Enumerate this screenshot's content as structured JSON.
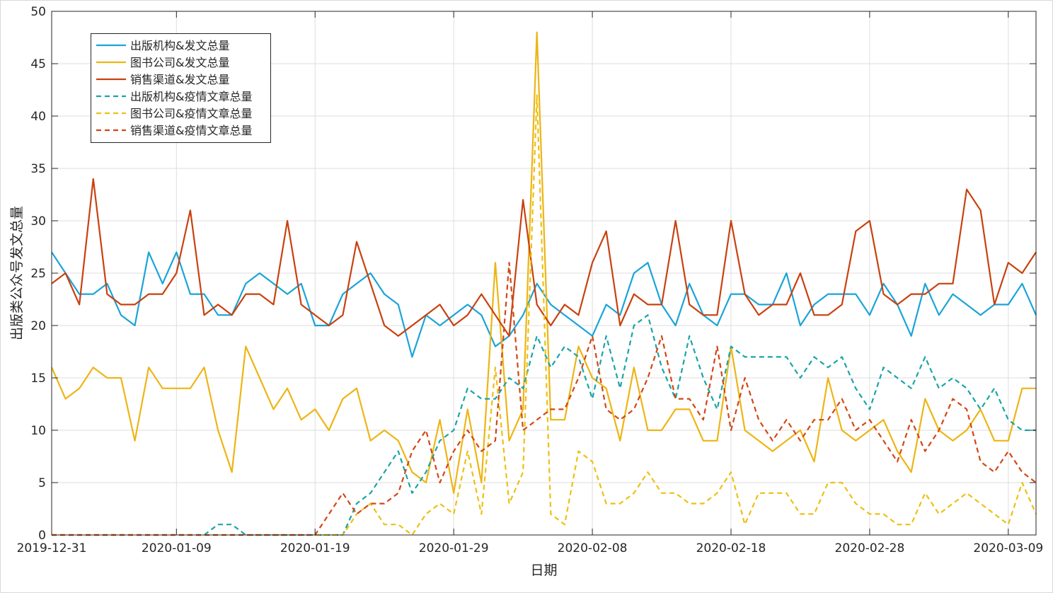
{
  "chart_data": {
    "type": "line",
    "xlabel": "日期",
    "ylabel": "出版类公众号发文总量",
    "ylim": [
      0,
      50
    ],
    "yticks": [
      0,
      5,
      10,
      15,
      20,
      25,
      30,
      35,
      40,
      45,
      50
    ],
    "xlim": [
      "2019-12-31",
      "2020-03-11"
    ],
    "xtick_labels": [
      "2019-12-31",
      "2020-01-09",
      "2020-01-19",
      "2020-01-29",
      "2020-02-08",
      "2020-02-18",
      "2020-02-28",
      "2020-03-09"
    ],
    "grid": true,
    "legend_position": "top-left",
    "dates": [
      "2019-12-31",
      "2020-01-01",
      "2020-01-02",
      "2020-01-03",
      "2020-01-04",
      "2020-01-05",
      "2020-01-06",
      "2020-01-07",
      "2020-01-08",
      "2020-01-09",
      "2020-01-10",
      "2020-01-11",
      "2020-01-12",
      "2020-01-13",
      "2020-01-14",
      "2020-01-15",
      "2020-01-16",
      "2020-01-17",
      "2020-01-18",
      "2020-01-19",
      "2020-01-20",
      "2020-01-21",
      "2020-01-22",
      "2020-01-23",
      "2020-01-24",
      "2020-01-25",
      "2020-01-26",
      "2020-01-27",
      "2020-01-28",
      "2020-01-29",
      "2020-01-30",
      "2020-01-31",
      "2020-02-01",
      "2020-02-02",
      "2020-02-03",
      "2020-02-04",
      "2020-02-05",
      "2020-02-06",
      "2020-02-07",
      "2020-02-08",
      "2020-02-09",
      "2020-02-10",
      "2020-02-11",
      "2020-02-12",
      "2020-02-13",
      "2020-02-14",
      "2020-02-15",
      "2020-02-16",
      "2020-02-17",
      "2020-02-18",
      "2020-02-19",
      "2020-02-20",
      "2020-02-21",
      "2020-02-22",
      "2020-02-23",
      "2020-02-24",
      "2020-02-25",
      "2020-02-26",
      "2020-02-27",
      "2020-02-28",
      "2020-02-29",
      "2020-03-01",
      "2020-03-02",
      "2020-03-03",
      "2020-03-04",
      "2020-03-05",
      "2020-03-06",
      "2020-03-07",
      "2020-03-08",
      "2020-03-09",
      "2020-03-10",
      "2020-03-11"
    ],
    "series": [
      {
        "name": "出版机构&发文总量",
        "color": "#1AA4D8",
        "style": "solid",
        "values": [
          27,
          25,
          23,
          23,
          24,
          21,
          20,
          27,
          24,
          27,
          23,
          23,
          21,
          21,
          24,
          25,
          24,
          23,
          24,
          20,
          20,
          23,
          24,
          25,
          23,
          22,
          17,
          21,
          20,
          21,
          22,
          21,
          18,
          19,
          21,
          24,
          22,
          21,
          20,
          19,
          22,
          21,
          25,
          26,
          22,
          20,
          24,
          21,
          20,
          23,
          23,
          22,
          22,
          25,
          20,
          22,
          23,
          23,
          23,
          21,
          24,
          22,
          19,
          24,
          21,
          23,
          22,
          21,
          22,
          22,
          24,
          21
        ]
      },
      {
        "name": "图书公司&发文总量",
        "color": "#EDB514",
        "style": "solid",
        "values": [
          16,
          13,
          14,
          16,
          15,
          15,
          9,
          16,
          14,
          14,
          14,
          16,
          10,
          6,
          18,
          15,
          12,
          14,
          11,
          12,
          10,
          13,
          14,
          9,
          10,
          9,
          6,
          5,
          11,
          4,
          12,
          5,
          26,
          9,
          12,
          48,
          11,
          11,
          18,
          15,
          14,
          9,
          16,
          10,
          10,
          12,
          12,
          9,
          9,
          18,
          10,
          9,
          8,
          9,
          10,
          7,
          15,
          10,
          9,
          10,
          11,
          8,
          6,
          13,
          10,
          9,
          10,
          12,
          9,
          9,
          14,
          14
        ]
      },
      {
        "name": "销售渠道&发文总量",
        "color": "#C8410F",
        "style": "solid",
        "values": [
          24,
          25,
          22,
          34,
          23,
          22,
          22,
          23,
          23,
          25,
          31,
          21,
          22,
          21,
          23,
          23,
          22,
          30,
          22,
          21,
          20,
          21,
          28,
          24,
          20,
          19,
          20,
          21,
          22,
          20,
          21,
          23,
          21,
          19,
          32,
          22,
          20,
          22,
          21,
          26,
          29,
          20,
          23,
          22,
          22,
          30,
          22,
          21,
          21,
          30,
          23,
          21,
          22,
          22,
          25,
          21,
          21,
          22,
          29,
          30,
          23,
          22,
          23,
          23,
          24,
          24,
          33,
          31,
          22,
          26,
          25,
          27
        ]
      },
      {
        "name": "出版机构&疫情文章总量",
        "color": "#1AA4A8",
        "style": "dashed",
        "values": [
          0,
          0,
          0,
          0,
          0,
          0,
          0,
          0,
          0,
          0,
          0,
          0,
          1,
          1,
          0,
          0,
          0,
          0,
          0,
          0,
          0,
          0,
          3,
          4,
          6,
          8,
          4,
          6,
          9,
          10,
          14,
          13,
          13,
          15,
          14,
          19,
          16,
          18,
          17,
          13,
          19,
          14,
          20,
          21,
          16,
          13,
          19,
          15,
          12,
          18,
          17,
          17,
          17,
          17,
          15,
          17,
          16,
          17,
          14,
          12,
          16,
          15,
          14,
          17,
          14,
          15,
          14,
          12,
          14,
          11,
          10,
          10
        ]
      },
      {
        "name": "图书公司&疫情文章总量",
        "color": "#EDC014",
        "style": "dashed",
        "values": [
          0,
          0,
          0,
          0,
          0,
          0,
          0,
          0,
          0,
          0,
          0,
          0,
          0,
          0,
          0,
          0,
          0,
          0,
          0,
          0,
          0,
          0,
          2,
          3,
          1,
          1,
          0,
          2,
          3,
          2,
          8,
          2,
          16,
          3,
          6,
          42,
          2,
          1,
          8,
          7,
          3,
          3,
          4,
          6,
          4,
          4,
          3,
          3,
          4,
          6,
          1,
          4,
          4,
          4,
          2,
          2,
          5,
          5,
          3,
          2,
          2,
          1,
          1,
          4,
          2,
          3,
          4,
          3,
          2,
          1,
          5,
          2
        ]
      },
      {
        "name": "销售渠道&疫情文章总量",
        "color": "#D24715",
        "style": "dashed",
        "values": [
          0,
          0,
          0,
          0,
          0,
          0,
          0,
          0,
          0,
          0,
          0,
          0,
          0,
          0,
          0,
          0,
          0,
          0,
          0,
          0,
          2,
          4,
          2,
          3,
          3,
          4,
          8,
          10,
          5,
          8,
          10,
          8,
          9,
          26,
          10,
          11,
          12,
          12,
          15,
          19,
          12,
          11,
          12,
          15,
          19,
          13,
          13,
          11,
          18,
          10,
          15,
          11,
          9,
          11,
          9,
          11,
          11,
          13,
          10,
          11,
          9,
          7,
          11,
          8,
          10,
          13,
          12,
          7,
          6,
          8,
          6,
          5
        ]
      }
    ]
  }
}
